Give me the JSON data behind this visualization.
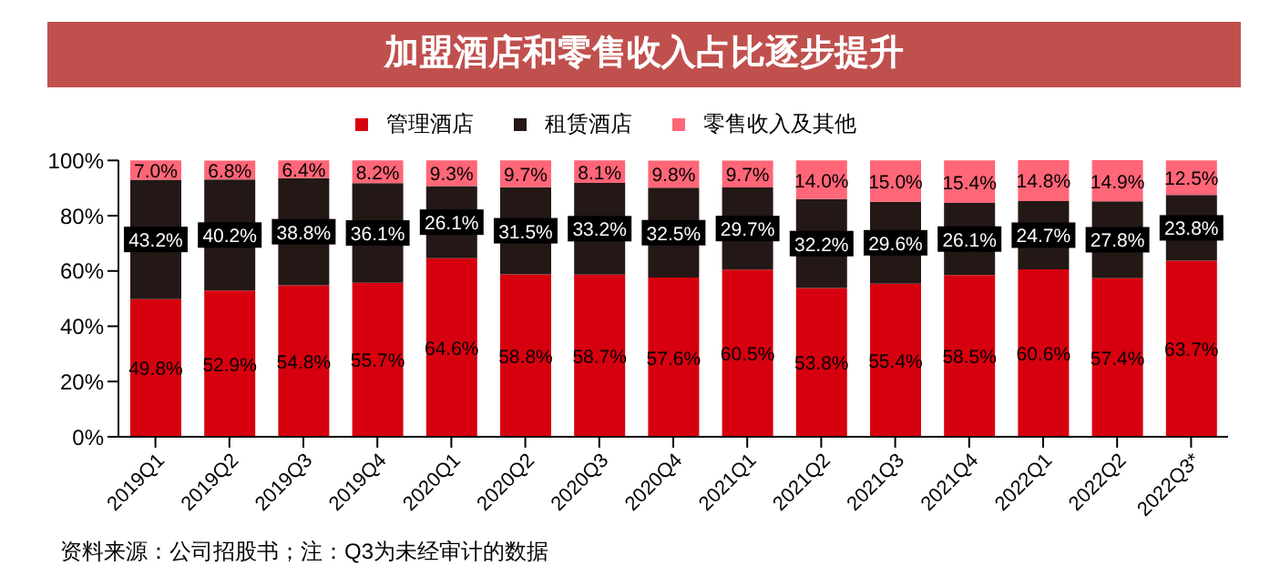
{
  "chart_data": {
    "type": "bar",
    "title": "加盟酒店和零售收入占比逐步提升",
    "stacked": true,
    "legend": "top",
    "categories": [
      "2019Q1",
      "2019Q2",
      "2019Q3",
      "2019Q4",
      "2020Q1",
      "2020Q2",
      "2020Q3",
      "2020Q4",
      "2021Q1",
      "2021Q2",
      "2021Q3",
      "2021Q4",
      "2022Q1",
      "2022Q2",
      "2022Q3*"
    ],
    "series": [
      {
        "name": "管理酒店",
        "color": "#d7000f",
        "values": [
          49.8,
          52.9,
          54.8,
          55.7,
          64.6,
          58.8,
          58.7,
          57.6,
          60.5,
          53.8,
          55.4,
          58.5,
          60.6,
          57.4,
          63.7
        ],
        "value_labels": [
          "49.8%",
          "52.9%",
          "54.8%",
          "55.7%",
          "64.6%",
          "58.8%",
          "58.7%",
          "57.6%",
          "60.5%",
          "53.8%",
          "55.4%",
          "58.5%",
          "60.6%",
          "57.4%",
          "63.7%"
        ]
      },
      {
        "name": "租赁酒店",
        "color": "#231816",
        "values": [
          43.2,
          40.2,
          38.8,
          36.1,
          26.1,
          31.5,
          33.2,
          32.5,
          29.7,
          32.2,
          29.6,
          26.1,
          24.7,
          27.8,
          23.8
        ],
        "value_labels": [
          "43.2%",
          "40.2%",
          "38.8%",
          "36.1%",
          "26.1%",
          "31.5%",
          "33.2%",
          "32.5%",
          "29.7%",
          "32.2%",
          "29.6%",
          "26.1%",
          "24.7%",
          "27.8%",
          "23.8%"
        ]
      },
      {
        "name": "零售收入及其他",
        "color": "#ff6677",
        "values": [
          7.0,
          6.8,
          6.4,
          8.2,
          9.3,
          9.7,
          8.1,
          9.8,
          9.7,
          14.0,
          15.0,
          15.4,
          14.8,
          14.9,
          12.5
        ],
        "value_labels": [
          "7.0%",
          "6.8%",
          "6.4%",
          "8.2%",
          "9.3%",
          "9.7%",
          "8.1%",
          "9.8%",
          "9.7%",
          "14.0%",
          "15.0%",
          "15.4%",
          "14.8%",
          "14.9%",
          "12.5%"
        ]
      }
    ],
    "ylim": [
      0,
      100.1
    ],
    "yticks": [
      {
        "value": 0,
        "label": "0%"
      },
      {
        "value": 20,
        "label": "20%"
      },
      {
        "value": 40,
        "label": "40%"
      },
      {
        "value": 60,
        "label": "60%"
      },
      {
        "value": 80,
        "label": "80%"
      },
      {
        "value": 100,
        "label": "100%"
      }
    ],
    "grid": false,
    "annotations": [
      "资料来源：公司招股书；注：Q3为未经审计的数据"
    ]
  }
}
